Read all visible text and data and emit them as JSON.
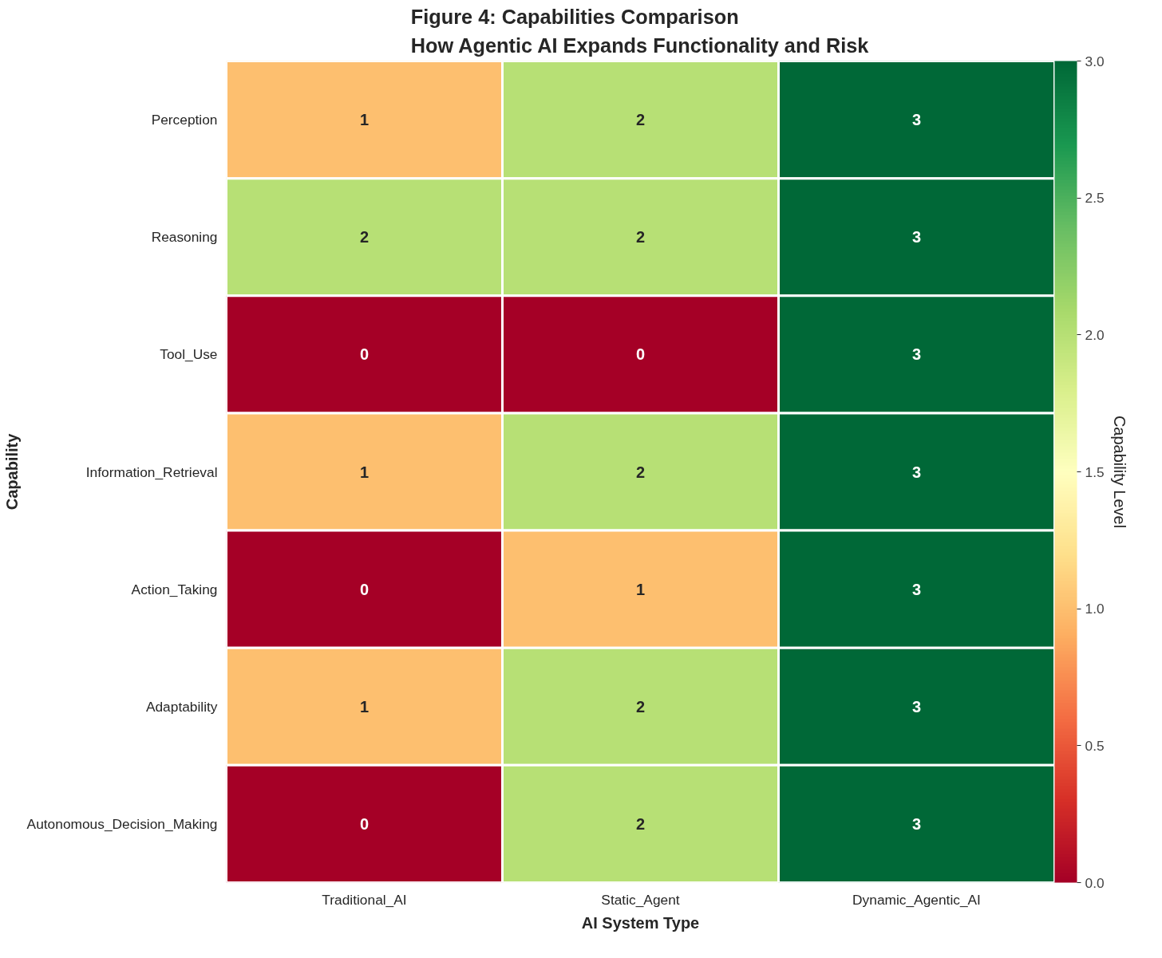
{
  "chart_data": {
    "type": "heatmap",
    "title": "Figure 4: Capabilities Comparison\nHow Agentic AI Expands Functionality and Risk",
    "xlabel": "AI System Type",
    "ylabel": "Capability",
    "clabel": "Capability Level",
    "categories": [
      "Traditional_AI",
      "Static_Agent",
      "Dynamic_Agentic_AI"
    ],
    "y_categories": [
      "Perception",
      "Reasoning",
      "Tool_Use",
      "Information_Retrieval",
      "Action_Taking",
      "Adaptability",
      "Autonomous_Decision_Making"
    ],
    "cells": [
      [
        1,
        2,
        3
      ],
      [
        2,
        2,
        3
      ],
      [
        0,
        0,
        3
      ],
      [
        1,
        2,
        3
      ],
      [
        0,
        1,
        3
      ],
      [
        1,
        2,
        3
      ],
      [
        0,
        2,
        3
      ]
    ],
    "clim": [
      0,
      3
    ],
    "cticks": [
      {
        "value": 0,
        "label": "0.0"
      },
      {
        "value": 0.5,
        "label": "0.5"
      },
      {
        "value": 1,
        "label": "1.0"
      },
      {
        "value": 1.5,
        "label": "1.5"
      },
      {
        "value": 2,
        "label": "2.0"
      },
      {
        "value": 2.5,
        "label": "2.5"
      },
      {
        "value": 3,
        "label": "3.0"
      }
    ],
    "data_labels": true
  }
}
